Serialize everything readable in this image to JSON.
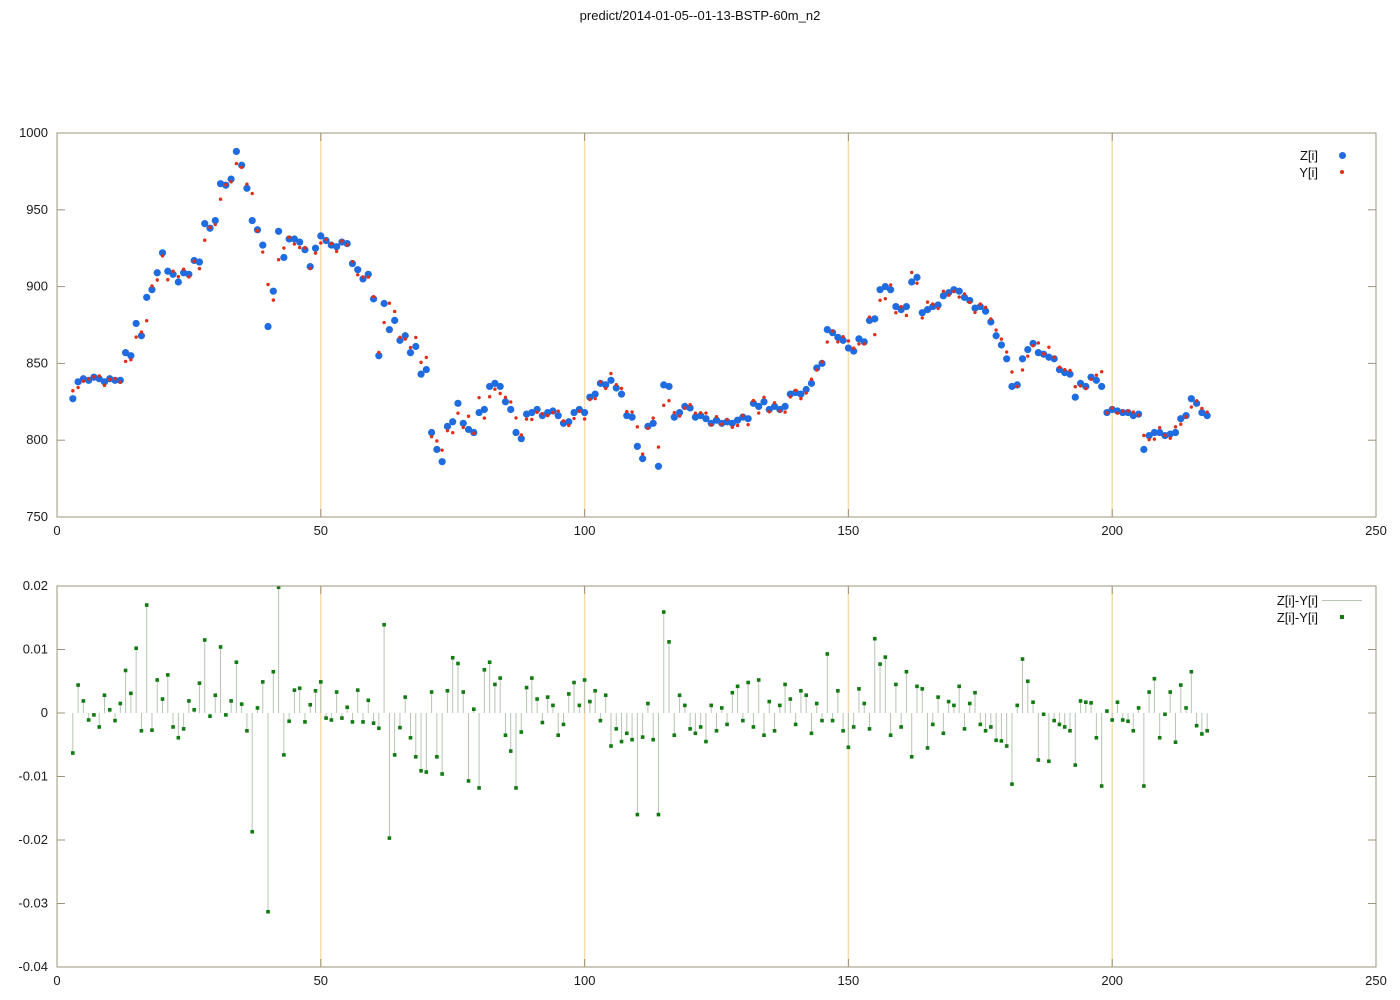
{
  "title": "predict/2014-01-05--01-13-BSTP-60m_n2",
  "colors": {
    "z_points": "#1e6ce0",
    "y_points": "#e22d17",
    "diff_points": "#117a11",
    "impulse_line": "#b7c4b3",
    "grid_line": "#f6dcab",
    "axis_border": "#9e947e",
    "text": "#1a1a1a"
  },
  "chart_data": [
    {
      "type": "scatter",
      "panel": "top",
      "xlim": [
        0,
        250
      ],
      "ylim": [
        750,
        1000
      ],
      "xticks": [
        0,
        50,
        100,
        150,
        200,
        250
      ],
      "xtick_labels": [
        "0",
        "50",
        "100",
        "150",
        "200",
        "250"
      ],
      "yticks": [
        750,
        800,
        850,
        900,
        950,
        1000
      ],
      "ytick_labels": [
        "750",
        "800",
        "850",
        "900",
        "950",
        "1000"
      ],
      "grid_x": [
        50,
        100,
        150,
        200
      ],
      "legend": [
        {
          "label": "Z[i]",
          "marker": "circle-big"
        },
        {
          "label": "Y[i]",
          "marker": "circle-small"
        }
      ],
      "x_start": 3,
      "series": [
        {
          "name": "Z[i]",
          "color": "#1e6ce0",
          "values": [
            827,
            838,
            840,
            839,
            841,
            840,
            838,
            840,
            839,
            839,
            857,
            855,
            876,
            868,
            893,
            898,
            909,
            922,
            910,
            908,
            903,
            909,
            908,
            917,
            916,
            941,
            938,
            943,
            967,
            966,
            970,
            988,
            979,
            964,
            943,
            937,
            927,
            874,
            897,
            936,
            919,
            931,
            931,
            929,
            924,
            913,
            925,
            933,
            930,
            927,
            926,
            929,
            928,
            915,
            911,
            905,
            908,
            892,
            855,
            889,
            872,
            878,
            865,
            868,
            857,
            861,
            843,
            846,
            805,
            794,
            786,
            809,
            812,
            824,
            811,
            807,
            805,
            818,
            820,
            835,
            837,
            835,
            825,
            820,
            805,
            801,
            817,
            818,
            820,
            816,
            818,
            819,
            816,
            811,
            812,
            818,
            820,
            818,
            828,
            830,
            837,
            836,
            839,
            834,
            830,
            816,
            815,
            796,
            788,
            809,
            811,
            783,
            836,
            835,
            815,
            818,
            822,
            821,
            815,
            816,
            814,
            811,
            813,
            811,
            812,
            811,
            813,
            815,
            814,
            824,
            822,
            825,
            820,
            822,
            820,
            822,
            830,
            831,
            830,
            833,
            837,
            847,
            850,
            872,
            870,
            867,
            865,
            860,
            858,
            866,
            864,
            878,
            879,
            898,
            900,
            898,
            887,
            885,
            887,
            903,
            906,
            883,
            885,
            887,
            888,
            894,
            896,
            898,
            897,
            893,
            891,
            886,
            887,
            884,
            877,
            868,
            862,
            853,
            835,
            836,
            853,
            859,
            863,
            857,
            856,
            854,
            853,
            846,
            844,
            843,
            828,
            837,
            835,
            841,
            839,
            835,
            818,
            820,
            819,
            818,
            818,
            816,
            817,
            794,
            803,
            805,
            805,
            803,
            804,
            805,
            814,
            816,
            827,
            824,
            818,
            816
          ]
        },
        {
          "name": "Y[i]",
          "color": "#e22d17",
          "values": [
            832.2,
            834.3,
            838.4,
            839.9,
            841.3,
            841.8,
            835.7,
            839.6,
            840.0,
            837.7,
            851.3,
            852.4,
            867.1,
            870.4,
            877.8,
            900.4,
            904.3,
            920.0,
            904.5,
            910.0,
            906.5,
            911.3,
            906.3,
            916.5,
            911.7,
            930.2,
            938.5,
            940.4,
            956.9,
            966.3,
            968.2,
            980.1,
            977.6,
            966.7,
            960.6,
            936.3,
            922.5,
            901.4,
            891.2,
            917.5,
            925.1,
            932.2,
            927.7,
            925.4,
            925.3,
            911.8,
            921.8,
            928.4,
            930.7,
            928.0,
            922.9,
            929.7,
            927.2,
            916.3,
            907.7,
            906.3,
            906.2,
            893.4,
            857.1,
            876.6,
            889.2,
            883.8,
            867.0,
            865.8,
            860.3,
            866.9,
            850.7,
            853.9,
            802.3,
            799.5,
            793.5,
            806.2,
            804.9,
            817.6,
            808.3,
            815.6,
            804.5,
            827.7,
            814.4,
            828.3,
            833.2,
            830.4,
            827.9,
            824.9,
            814.5,
            803.4,
            813.7,
            813.5,
            818.2,
            817.2,
            816.0,
            818.0,
            818.9,
            812.5,
            809.6,
            814.1,
            819.0,
            813.8,
            826.5,
            827.1,
            838.0,
            833.7,
            843.4,
            836.1,
            833.7,
            818.6,
            818.4,
            808.7,
            791.0,
            807.8,
            814.4,
            795.5,
            822.7,
            825.7,
            817.9,
            815.7,
            821.0,
            823.1,
            817.6,
            817.8,
            817.7,
            810.0,
            815.3,
            810.4,
            813.5,
            808.4,
            809.6,
            816.0,
            810.1,
            825.8,
            817.7,
            827.9,
            818.5,
            824.3,
            819.0,
            818.3,
            828.2,
            832.5,
            827.1,
            830.7,
            839.7,
            845.7,
            851.0,
            863.9,
            871.0,
            864.0,
            867.4,
            864.6,
            859.9,
            862.7,
            862.7,
            880.2,
            868.7,
            891.1,
            892.1,
            901.1,
            883.0,
            886.9,
            881.2,
            909.2,
            902.2,
            879.6,
            889.9,
            888.6,
            885.8,
            896.9,
            894.4,
            896.9,
            893.2,
            895.2,
            889.7,
            883.2,
            888.6,
            886.5,
            878.9,
            871.7,
            865.8,
            857.4,
            844.4,
            835.0,
            845.7,
            854.7,
            861.5,
            863.3,
            856.2,
            860.5,
            854.0,
            847.5,
            845.9,
            845.4,
            834.8,
            835.4,
            833.6,
            839.7,
            842.3,
            844.6,
            817.8,
            820.9,
            817.6,
            818.9,
            819.1,
            818.3,
            816.3,
            803.1,
            800.4,
            800.7,
            808.1,
            803.2,
            801.3,
            808.7,
            810.4,
            815.3,
            821.6,
            825.6,
            820.7,
            818.3
          ]
        }
      ]
    },
    {
      "type": "stem",
      "panel": "bottom",
      "xlim": [
        0,
        250
      ],
      "ylim": [
        -0.04,
        0.02
      ],
      "xticks": [
        0,
        50,
        100,
        150,
        200,
        250
      ],
      "xtick_labels": [
        "0",
        "50",
        "100",
        "150",
        "200",
        "250"
      ],
      "yticks": [
        0.02,
        0.01,
        0,
        -0.01,
        -0.02,
        -0.03,
        -0.04
      ],
      "ytick_labels": [
        "0.02",
        "0.01",
        "0",
        "-0.01",
        "-0.02",
        "-0.03",
        "-0.04"
      ],
      "grid_x": [
        50,
        100,
        150,
        200
      ],
      "legend": [
        {
          "label": "Z[i]-Y[i]",
          "marker": "line"
        },
        {
          "label": "Z[i]-Y[i]",
          "marker": "square"
        }
      ],
      "x_start": 3,
      "series": [
        {
          "name": "Z[i]-Y[i]",
          "color": "#117a11",
          "values": [
            -0.0063,
            0.0044,
            0.0019,
            -0.0011,
            -0.0003,
            -0.0022,
            0.0028,
            0.0005,
            -0.0012,
            0.0015,
            0.0067,
            0.0031,
            0.0102,
            -0.0028,
            0.017,
            -0.0027,
            0.0052,
            0.0022,
            0.006,
            -0.0022,
            -0.0039,
            -0.0025,
            0.0019,
            0.0005,
            0.0047,
            0.0115,
            -0.0005,
            0.0028,
            0.0104,
            -0.0003,
            0.0019,
            0.008,
            0.0014,
            -0.0028,
            -0.0187,
            0.0008,
            0.0049,
            -0.0313,
            0.0065,
            0.0198,
            -0.0066,
            -0.0013,
            0.0036,
            0.0039,
            -0.0014,
            0.0013,
            0.0035,
            0.0049,
            -0.0008,
            -0.0011,
            0.0033,
            -0.0008,
            0.0009,
            -0.0014,
            0.0036,
            -0.0014,
            0.002,
            -0.0016,
            -0.0024,
            0.0139,
            -0.0197,
            -0.0066,
            -0.0023,
            0.0025,
            -0.0039,
            -0.0069,
            -0.0091,
            -0.0093,
            0.0033,
            -0.0069,
            -0.0096,
            0.0035,
            0.0087,
            0.0078,
            0.0033,
            -0.0107,
            0.0006,
            -0.0118,
            0.0068,
            0.008,
            0.0045,
            0.0055,
            -0.0035,
            -0.006,
            -0.0118,
            -0.003,
            0.004,
            0.0055,
            0.0022,
            -0.0015,
            0.0025,
            0.0012,
            -0.0035,
            -0.0018,
            0.003,
            0.0048,
            0.0012,
            0.0052,
            0.0018,
            0.0035,
            -0.0012,
            0.0028,
            -0.0052,
            -0.0025,
            -0.0045,
            -0.0032,
            -0.0042,
            -0.016,
            -0.0038,
            0.0015,
            -0.0042,
            -0.016,
            0.0159,
            0.0112,
            -0.0035,
            0.0028,
            0.0012,
            -0.0025,
            -0.0032,
            -0.0022,
            -0.0045,
            0.0012,
            -0.0028,
            0.0008,
            -0.0018,
            0.0032,
            0.0042,
            -0.0012,
            0.0048,
            -0.0022,
            0.0052,
            -0.0035,
            0.0018,
            -0.0028,
            0.0012,
            0.0045,
            0.0022,
            -0.0018,
            0.0035,
            0.0028,
            -0.0032,
            0.0015,
            -0.0012,
            0.0093,
            -0.0012,
            0.0035,
            -0.0028,
            -0.0054,
            -0.0022,
            0.0038,
            0.0015,
            -0.0025,
            0.0117,
            0.0077,
            0.0088,
            -0.0035,
            0.0045,
            -0.0022,
            0.0065,
            -0.0069,
            0.0042,
            0.0038,
            -0.0055,
            -0.0018,
            0.0025,
            -0.0032,
            0.0018,
            0.0012,
            0.0042,
            -0.0025,
            0.0015,
            0.0032,
            -0.0018,
            -0.0028,
            -0.0022,
            -0.0043,
            -0.0044,
            -0.0052,
            -0.0112,
            0.0012,
            0.0085,
            0.005,
            0.0017,
            -0.0074,
            -0.0002,
            -0.0076,
            -0.0012,
            -0.0018,
            -0.0022,
            -0.0028,
            -0.0082,
            0.0019,
            0.0017,
            0.0016,
            -0.0039,
            -0.0115,
            0.0003,
            -0.0011,
            0.0017,
            -0.0011,
            -0.0013,
            -0.0028,
            0.0008,
            -0.0115,
            0.0033,
            0.0054,
            -0.0039,
            -0.0002,
            0.0033,
            -0.0046,
            0.0044,
            0.0008,
            0.0065,
            -0.002,
            -0.0033,
            -0.0028
          ]
        }
      ]
    }
  ]
}
